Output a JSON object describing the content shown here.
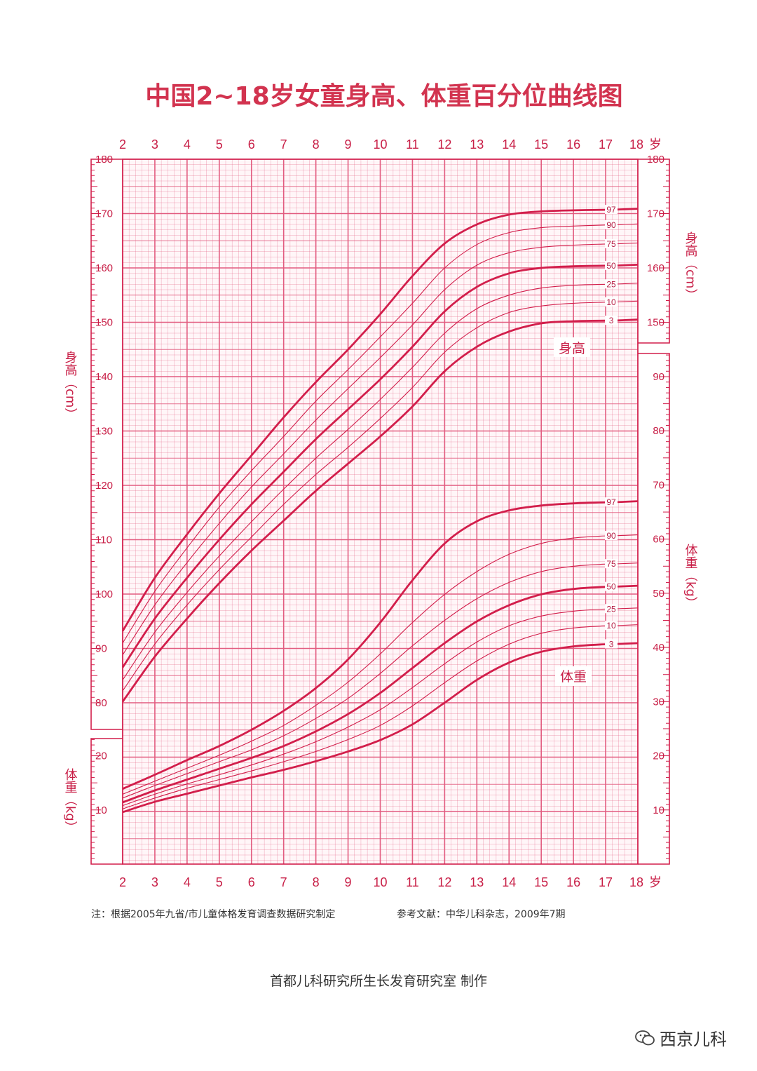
{
  "title": "中国2~18岁女童身高、体重百分位曲线图",
  "age_unit": "岁",
  "left_height_label": "身高（cm）",
  "right_height_label": "身高（cm）",
  "left_weight_label": "体重（kg）",
  "right_weight_label": "体重（kg）",
  "height_panel_label": "身高",
  "weight_panel_label": "体重",
  "note": "注：根据2005年九省/市儿童体格发育调查数据研究制定",
  "reference": "参考文献：中华儿科杂志，2009年7期",
  "footer": "首都儿科研究所生长发育研究室 制作",
  "watermark": "西京儿科",
  "colors": {
    "grid": "#e25c80",
    "curve": "#d21e4b",
    "text": "#c81e46",
    "title": "#d2334f"
  },
  "chart_data": [
    {
      "type": "line",
      "title": "身高",
      "xlabel": "岁",
      "ylabel": "身高（cm）",
      "xlim": [
        2,
        18
      ],
      "ylim": [
        80,
        180
      ],
      "yticks": [
        80,
        90,
        100,
        110,
        120,
        130,
        140,
        150,
        160,
        170,
        180
      ],
      "right_yticks": [
        150,
        160,
        170,
        180
      ],
      "xticks": [
        2,
        3,
        4,
        5,
        6,
        7,
        8,
        9,
        10,
        11,
        12,
        13,
        14,
        15,
        16,
        17,
        18
      ],
      "grid": true,
      "x": [
        2,
        3,
        4,
        5,
        6,
        7,
        8,
        9,
        10,
        11,
        12,
        13,
        14,
        15,
        16,
        17
      ],
      "series": [
        {
          "name": "3",
          "values": [
            80.2,
            88.5,
            95.5,
            102.0,
            108.0,
            113.5,
            119.0,
            124.0,
            129.0,
            134.5,
            141.0,
            145.5,
            148.3,
            149.8,
            150.2,
            150.3
          ]
        },
        {
          "name": "10",
          "values": [
            82.2,
            90.8,
            98.0,
            104.5,
            110.5,
            116.5,
            122.0,
            127.0,
            132.3,
            138.0,
            144.5,
            149.0,
            151.8,
            153.0,
            153.5,
            153.7
          ]
        },
        {
          "name": "25",
          "values": [
            84.2,
            93.0,
            100.3,
            107.0,
            113.3,
            119.3,
            125.0,
            130.3,
            135.8,
            141.7,
            148.0,
            152.5,
            155.0,
            156.3,
            156.8,
            157.0
          ]
        },
        {
          "name": "50",
          "values": [
            86.5,
            95.5,
            103.0,
            110.0,
            116.5,
            122.5,
            128.5,
            134.0,
            139.5,
            145.5,
            152.0,
            156.5,
            159.0,
            160.0,
            160.3,
            160.4
          ]
        },
        {
          "name": "75",
          "values": [
            88.8,
            98.0,
            105.8,
            113.0,
            119.7,
            125.8,
            132.0,
            137.8,
            143.5,
            149.5,
            156.0,
            160.5,
            162.8,
            163.8,
            164.2,
            164.4
          ]
        },
        {
          "name": "90",
          "values": [
            91.0,
            100.5,
            108.5,
            116.0,
            122.7,
            129.0,
            135.5,
            141.3,
            147.3,
            153.5,
            160.0,
            164.3,
            166.5,
            167.4,
            167.7,
            167.9
          ]
        },
        {
          "name": "97",
          "values": [
            93.2,
            103.0,
            111.0,
            118.5,
            125.5,
            132.5,
            139.0,
            145.0,
            151.5,
            158.5,
            164.5,
            168.0,
            169.8,
            170.4,
            170.6,
            170.7
          ]
        }
      ]
    },
    {
      "type": "line",
      "title": "体重",
      "xlabel": "岁",
      "ylabel": "体重（kg）",
      "xlim": [
        2,
        18
      ],
      "ylim": [
        0,
        95
      ],
      "yticks": [
        10,
        20
      ],
      "right_yticks": [
        10,
        20,
        30,
        40,
        50,
        60,
        70,
        80,
        90
      ],
      "xticks": [
        2,
        3,
        4,
        5,
        6,
        7,
        8,
        9,
        10,
        11,
        12,
        13,
        14,
        15,
        16,
        17,
        18
      ],
      "grid": true,
      "x": [
        2,
        3,
        4,
        5,
        6,
        7,
        8,
        9,
        10,
        11,
        12,
        13,
        14,
        15,
        16,
        17
      ],
      "series": [
        {
          "name": "3",
          "values": [
            9.6,
            11.5,
            13.0,
            14.5,
            16.0,
            17.4,
            19.0,
            20.8,
            22.9,
            25.8,
            29.8,
            34.0,
            37.2,
            39.2,
            40.2,
            40.6
          ]
        },
        {
          "name": "10",
          "values": [
            10.2,
            12.2,
            14.0,
            15.6,
            17.2,
            18.9,
            20.8,
            23.0,
            25.6,
            29.2,
            33.5,
            37.5,
            40.6,
            42.6,
            43.6,
            44.0
          ]
        },
        {
          "name": "25",
          "values": [
            10.8,
            12.9,
            14.8,
            16.5,
            18.3,
            20.3,
            22.6,
            25.3,
            28.5,
            32.6,
            37.0,
            41.0,
            44.0,
            45.8,
            46.7,
            47.1
          ]
        },
        {
          "name": "50",
          "values": [
            11.4,
            13.6,
            15.6,
            17.6,
            19.6,
            21.8,
            24.5,
            27.7,
            31.6,
            36.2,
            40.8,
            44.8,
            47.8,
            49.8,
            50.8,
            51.2
          ]
        },
        {
          "name": "75",
          "values": [
            12.2,
            14.5,
            16.7,
            18.9,
            21.1,
            23.7,
            26.9,
            30.6,
            35.2,
            40.3,
            45.0,
            49.0,
            52.0,
            54.0,
            55.0,
            55.4
          ]
        },
        {
          "name": "90",
          "values": [
            12.9,
            15.3,
            17.7,
            20.1,
            22.7,
            25.6,
            29.3,
            33.6,
            38.8,
            44.6,
            49.8,
            54.0,
            57.2,
            59.2,
            60.2,
            60.6
          ]
        },
        {
          "name": "97",
          "values": [
            13.9,
            16.5,
            19.2,
            21.8,
            24.8,
            28.3,
            32.5,
            37.8,
            44.6,
            52.4,
            59.2,
            63.3,
            65.3,
            66.2,
            66.6,
            66.8
          ]
        }
      ]
    }
  ]
}
